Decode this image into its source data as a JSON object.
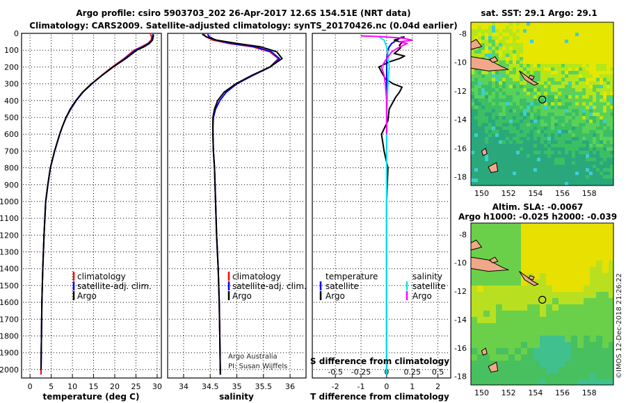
{
  "header": {
    "title_line1": "Argo profile: csiro 5903703_202 26-Apr-2017 12.6S 154.51E (NRT data)",
    "title_line2": "Climatology: CARS2009. Satellite-adjusted climatology: synTS_20170426.nc (0.04d earlier)"
  },
  "credit": {
    "line1": "Argo Australia",
    "line2": "PI: Susan Wijffels"
  },
  "copyright": "©IMOS 12-Dec-2018 21:26:22",
  "colors": {
    "climatology": "#ff0000",
    "satellite": "#0000ff",
    "argo": "#000000",
    "sat_salinity": "#00e5ee",
    "argo_salinity_diff": "#ff00ff"
  },
  "chart_data": [
    {
      "id": "temperature",
      "type": "line",
      "xlabel": "temperature (deg C)",
      "ylabel": "",
      "xlim": [
        -2,
        31
      ],
      "ylim": [
        2050,
        0
      ],
      "xticks": [
        0,
        5,
        10,
        15,
        20,
        25,
        30
      ],
      "yticks": [
        0,
        100,
        200,
        300,
        400,
        500,
        600,
        700,
        800,
        900,
        1000,
        1100,
        1200,
        1300,
        1400,
        1500,
        1600,
        1700,
        1800,
        1900,
        2000
      ],
      "legend": [
        "climatology",
        "satellite-adj. clim.",
        "Argo"
      ],
      "series": [
        {
          "name": "climatology",
          "color": "#ff0000",
          "x": [
            28.4,
            28.7,
            28.6,
            27.8,
            26.3,
            24.6,
            22.2,
            19.4,
            16.9,
            14.5,
            12.4,
            10.9,
            9.6,
            8.5,
            7.7,
            7.0,
            5.8,
            4.8,
            4.2,
            3.7,
            3.3,
            3.0,
            2.8,
            2.7,
            2.6,
            2.6
          ],
          "y": [
            5,
            20,
            40,
            60,
            80,
            100,
            150,
            200,
            250,
            300,
            350,
            400,
            450,
            500,
            550,
            600,
            700,
            800,
            900,
            1000,
            1200,
            1400,
            1600,
            1800,
            2000,
            2030
          ]
        },
        {
          "name": "satellite-adj. clim.",
          "color": "#0000ff",
          "x": [
            29.0,
            29.0,
            28.8,
            28.0,
            26.6,
            24.9,
            22.4,
            19.6,
            17.0,
            14.6,
            12.5,
            10.9,
            9.6,
            8.5,
            7.7,
            7.0,
            5.8,
            4.8,
            4.2,
            3.7,
            3.3,
            3.0,
            2.8,
            2.7,
            2.6
          ],
          "y": [
            5,
            20,
            40,
            60,
            80,
            100,
            150,
            200,
            250,
            300,
            350,
            400,
            450,
            500,
            550,
            600,
            700,
            800,
            900,
            1000,
            1200,
            1400,
            1600,
            1800,
            2000
          ]
        },
        {
          "name": "Argo",
          "color": "#000000",
          "x": [
            29.1,
            29.1,
            28.9,
            28.2,
            26.9,
            25.2,
            22.6,
            19.6,
            17.0,
            14.5,
            12.4,
            10.8,
            9.5,
            8.5,
            7.7,
            7.0,
            5.8,
            4.8,
            4.2,
            3.7,
            3.3,
            3.0,
            2.8,
            2.7,
            2.6
          ],
          "y": [
            5,
            20,
            40,
            60,
            80,
            100,
            150,
            200,
            250,
            300,
            350,
            400,
            450,
            500,
            550,
            600,
            700,
            800,
            900,
            1000,
            1200,
            1400,
            1600,
            1800,
            2000
          ]
        }
      ]
    },
    {
      "id": "salinity",
      "type": "line",
      "xlabel": "salinity",
      "ylabel": "",
      "xlim": [
        33.7,
        36.3
      ],
      "ylim": [
        2050,
        0
      ],
      "xticks": [
        34,
        34.5,
        35,
        35.5,
        36
      ],
      "legend": [
        "climatology",
        "satellite-adj. clim.",
        "Argo"
      ],
      "series": [
        {
          "name": "climatology",
          "color": "#ff0000",
          "x": [
            34.38,
            34.42,
            34.55,
            34.85,
            35.3,
            35.62,
            35.78,
            35.62,
            35.3,
            35.0,
            34.8,
            34.68,
            34.6,
            34.56,
            34.55,
            34.55,
            34.56,
            34.58,
            34.6,
            34.62,
            34.65,
            34.67,
            34.68,
            34.69
          ],
          "y": [
            5,
            20,
            40,
            60,
            80,
            110,
            150,
            200,
            250,
            300,
            350,
            400,
            450,
            500,
            550,
            600,
            700,
            800,
            1000,
            1200,
            1400,
            1600,
            1800,
            2030
          ]
        },
        {
          "name": "satellite-adj. clim.",
          "color": "#0000ff",
          "x": [
            34.45,
            34.48,
            34.6,
            34.9,
            35.35,
            35.65,
            35.8,
            35.63,
            35.3,
            35.0,
            34.8,
            34.68,
            34.6,
            34.56,
            34.55,
            34.55,
            34.56,
            34.58,
            34.6,
            34.62,
            34.65,
            34.67,
            34.68,
            34.69
          ],
          "y": [
            5,
            20,
            40,
            60,
            80,
            110,
            150,
            200,
            250,
            300,
            350,
            400,
            450,
            500,
            550,
            600,
            700,
            800,
            1000,
            1200,
            1400,
            1600,
            1800,
            2030
          ]
        },
        {
          "name": "Argo",
          "color": "#000000",
          "x": [
            34.35,
            34.42,
            34.62,
            35.0,
            35.45,
            35.75,
            35.85,
            35.62,
            35.28,
            34.98,
            34.76,
            34.64,
            34.58,
            34.55,
            34.55,
            34.55,
            34.56,
            34.58,
            34.6,
            34.62,
            34.65,
            34.67,
            34.68,
            34.69
          ],
          "y": [
            5,
            20,
            40,
            60,
            80,
            110,
            150,
            200,
            250,
            300,
            350,
            400,
            450,
            500,
            550,
            600,
            700,
            800,
            1000,
            1200,
            1400,
            1600,
            1800,
            2030
          ]
        }
      ]
    },
    {
      "id": "difference",
      "type": "line",
      "xlabel": "T difference from climatology",
      "xlabel2": "S difference from climatology",
      "xlim": [
        -2.9,
        2.5
      ],
      "ylim": [
        2050,
        0
      ],
      "xticks": [
        -2,
        -1,
        0,
        1,
        2
      ],
      "xticks2": [
        "-0.5",
        "-0.25",
        "0",
        "0.25",
        "0.5"
      ],
      "legend_left_title": "temperature",
      "legend_right_title": "salinity",
      "legend_left": [
        "satellite",
        "Argo"
      ],
      "legend_right": [
        "satellite",
        "Argo"
      ],
      "series": [
        {
          "name": "T satellite",
          "color": "#0000ff",
          "x": [
            0.6,
            0.4,
            0.2,
            0.1,
            0.05,
            0,
            0,
            0,
            0,
            0,
            0
          ],
          "y": [
            20,
            40,
            60,
            80,
            100,
            150,
            200,
            400,
            800,
            1500,
            2030
          ]
        },
        {
          "name": "T Argo",
          "color": "#000000",
          "x": [
            0.7,
            0.3,
            0.6,
            0.5,
            0.55,
            0.45,
            0.3,
            0.7,
            0.5,
            0.1,
            -0.3,
            -0.2,
            -0.05,
            0.25,
            0.6,
            0.5,
            0.35,
            0.1,
            0.05,
            -0.2,
            -0.1,
            0.05,
            0.0,
            0.0,
            0.0
          ],
          "y": [
            20,
            40,
            55,
            70,
            85,
            100,
            120,
            135,
            150,
            170,
            200,
            230,
            270,
            300,
            320,
            350,
            380,
            450,
            520,
            600,
            700,
            800,
            1000,
            1500,
            2030
          ]
        },
        {
          "name": "S satellite",
          "color": "#00e5ee",
          "x": [
            -0.3,
            -0.1,
            -0.05,
            0,
            0.05,
            0.1,
            0.05,
            0,
            0,
            0,
            0
          ],
          "y": [
            20,
            40,
            60,
            80,
            120,
            200,
            300,
            500,
            800,
            1500,
            2030
          ]
        },
        {
          "name": "S Argo",
          "color": "#ff00ff",
          "x": [
            -1.0,
            -0.2,
            0.6,
            1.0,
            0.5,
            0.8,
            0.6,
            0.4,
            0.2,
            0.0,
            -0.2,
            -0.1,
            -0.05,
            0,
            0,
            0
          ],
          "y": [
            15,
            20,
            28,
            40,
            50,
            60,
            75,
            90,
            110,
            150,
            200,
            250,
            300,
            400,
            500,
            600
          ]
        }
      ]
    },
    {
      "id": "sst-map",
      "type": "heatmap",
      "title": "sat. SST: 29.1 Argo: 29.1",
      "xlim": [
        149.2,
        159.8
      ],
      "ylim": [
        -18.6,
        -7.2
      ],
      "xticks": [
        150,
        152,
        154,
        156,
        158
      ],
      "yticks": [
        -8,
        -10,
        -12,
        -14,
        -16,
        -18
      ],
      "argo_position": [
        154.51,
        -12.6
      ]
    },
    {
      "id": "sla-map",
      "type": "heatmap",
      "title": "Altim. SLA: -0.0067",
      "title2": "Argo h1000: -0.025 h2000: -0.039",
      "xlim": [
        149.2,
        159.8
      ],
      "ylim": [
        -18.6,
        -7.2
      ],
      "xticks": [
        150,
        152,
        154,
        156,
        158
      ],
      "yticks": [
        -8,
        -10,
        -12,
        -14,
        -16,
        -18
      ],
      "argo_position": [
        154.51,
        -12.6
      ]
    }
  ]
}
